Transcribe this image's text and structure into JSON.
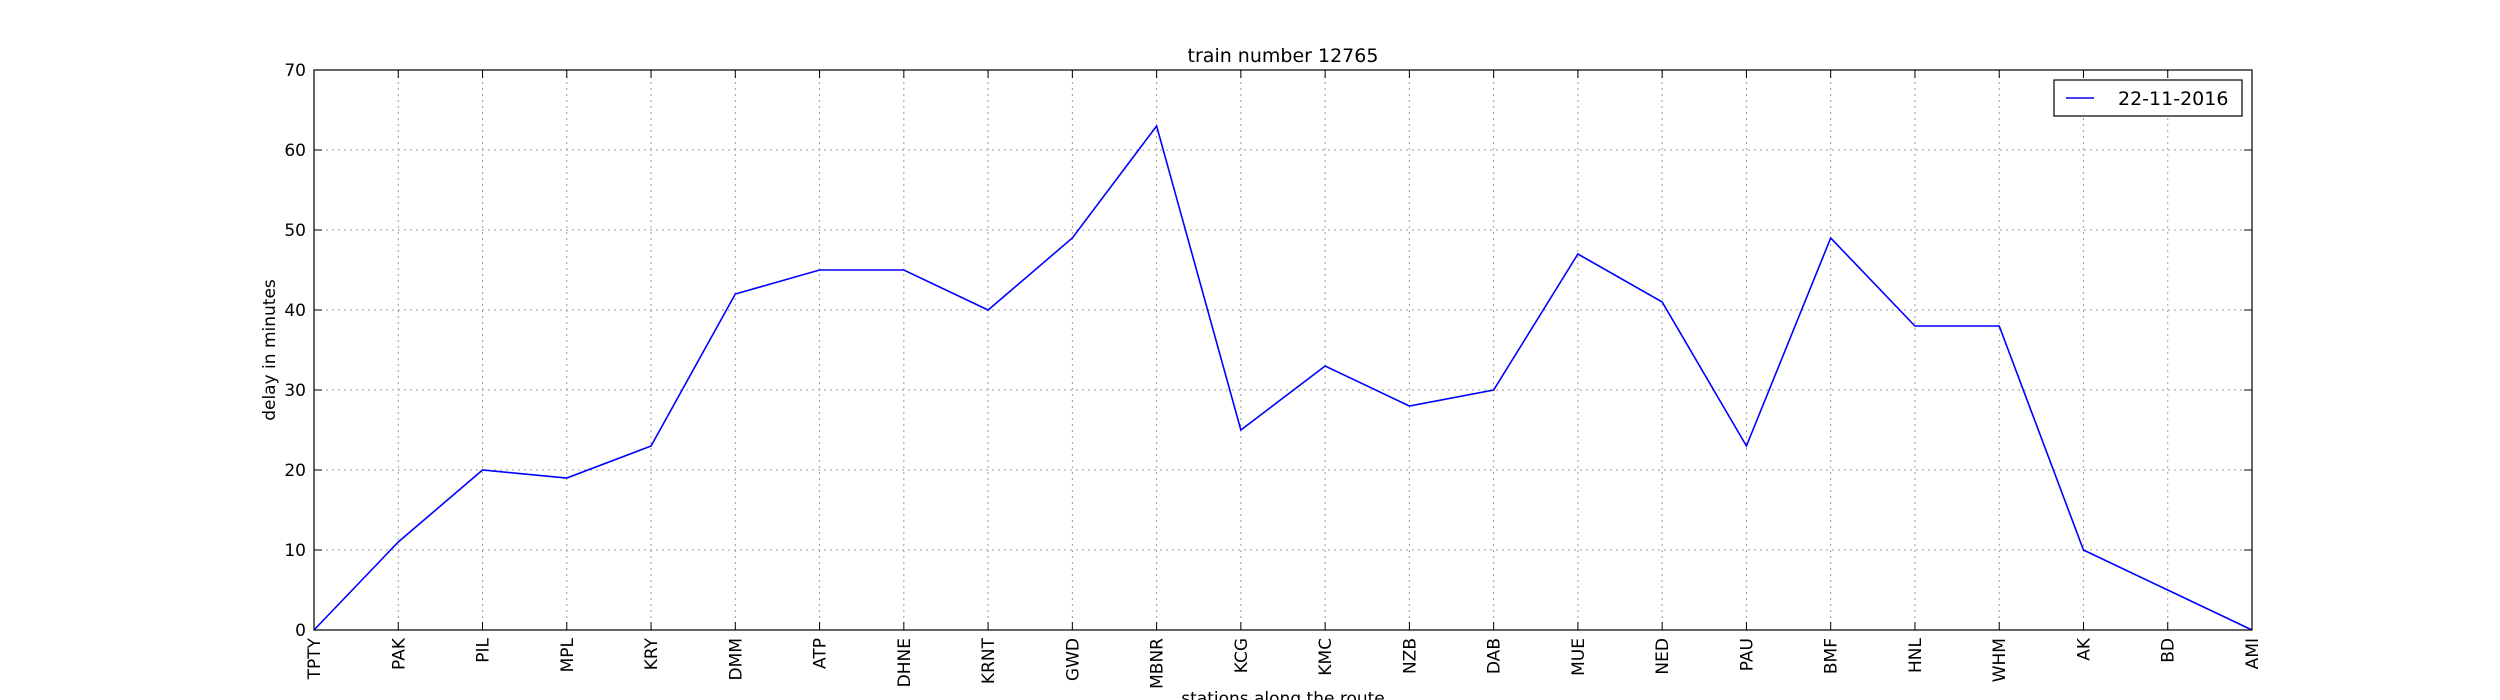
{
  "chart_data": {
    "type": "line",
    "title": "train number 12765",
    "xlabel": "stations along the route",
    "ylabel": "delay in minutes",
    "categories": [
      "TPTY",
      "PAK",
      "PIL",
      "MPL",
      "KRY",
      "DMM",
      "ATP",
      "DHNE",
      "KRNT",
      "GWD",
      "MBNR",
      "KCG",
      "KMC",
      "NZB",
      "DAB",
      "MUE",
      "NED",
      "PAU",
      "BMF",
      "HNL",
      "WHM",
      "AK",
      "BD",
      "AMI"
    ],
    "series": [
      {
        "name": "22-11-2016",
        "color": "#0000ff",
        "values": [
          0,
          11,
          20,
          19,
          23,
          42,
          45,
          45,
          40,
          49,
          63,
          25,
          33,
          28,
          30,
          47,
          41,
          23,
          49,
          38,
          38,
          10,
          5,
          0
        ]
      }
    ],
    "ylim": [
      0,
      70
    ],
    "yticks": [
      0,
      10,
      20,
      30,
      40,
      50,
      60,
      70
    ],
    "grid": true,
    "legend_position": "top-right"
  }
}
